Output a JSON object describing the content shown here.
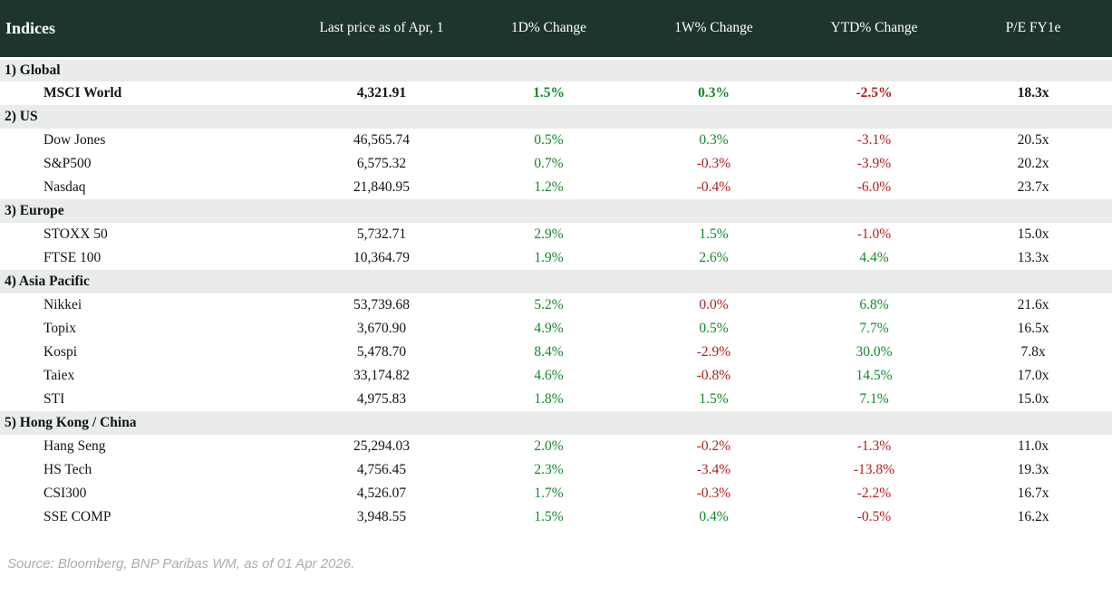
{
  "chart_data": {
    "type": "table",
    "title": "Indices",
    "columns": [
      "Last price as of Apr, 1",
      "1D% Change",
      "1W% Change",
      "YTD% Change",
      "P/E FY1e"
    ],
    "sections": [
      {
        "label": "1) Global",
        "rows": [
          {
            "name": "MSCI World",
            "bold": true,
            "price": "4,321.91",
            "changes": [
              {
                "text": "1.5%",
                "tone": "pos"
              },
              {
                "text": "0.3%",
                "tone": "pos"
              },
              {
                "text": "-2.5%",
                "tone": "neg"
              }
            ],
            "pe": "18.3x"
          }
        ]
      },
      {
        "label": "2) US",
        "rows": [
          {
            "name": "Dow Jones",
            "price": "46,565.74",
            "changes": [
              {
                "text": "0.5%",
                "tone": "pos"
              },
              {
                "text": "0.3%",
                "tone": "pos"
              },
              {
                "text": "-3.1%",
                "tone": "neg"
              }
            ],
            "pe": "20.5x"
          },
          {
            "name": "S&P500",
            "price": "6,575.32",
            "changes": [
              {
                "text": "0.7%",
                "tone": "pos"
              },
              {
                "text": "-0.3%",
                "tone": "neg"
              },
              {
                "text": "-3.9%",
                "tone": "neg"
              }
            ],
            "pe": "20.2x"
          },
          {
            "name": "Nasdaq",
            "price": "21,840.95",
            "changes": [
              {
                "text": "1.2%",
                "tone": "pos"
              },
              {
                "text": "-0.4%",
                "tone": "neg"
              },
              {
                "text": "-6.0%",
                "tone": "neg"
              }
            ],
            "pe": "23.7x"
          }
        ]
      },
      {
        "label": "3) Europe",
        "rows": [
          {
            "name": "STOXX 50",
            "price": "5,732.71",
            "changes": [
              {
                "text": "2.9%",
                "tone": "pos"
              },
              {
                "text": "1.5%",
                "tone": "pos"
              },
              {
                "text": "-1.0%",
                "tone": "neg"
              }
            ],
            "pe": "15.0x"
          },
          {
            "name": "FTSE 100",
            "price": "10,364.79",
            "changes": [
              {
                "text": "1.9%",
                "tone": "pos"
              },
              {
                "text": "2.6%",
                "tone": "pos"
              },
              {
                "text": "4.4%",
                "tone": "pos"
              }
            ],
            "pe": "13.3x"
          }
        ]
      },
      {
        "label": "4) Asia Pacific",
        "rows": [
          {
            "name": "Nikkei",
            "price": "53,739.68",
            "changes": [
              {
                "text": "5.2%",
                "tone": "pos"
              },
              {
                "text": "0.0%",
                "tone": "neg"
              },
              {
                "text": "6.8%",
                "tone": "pos"
              }
            ],
            "pe": "21.6x"
          },
          {
            "name": "Topix",
            "price": "3,670.90",
            "changes": [
              {
                "text": "4.9%",
                "tone": "pos"
              },
              {
                "text": "0.5%",
                "tone": "pos"
              },
              {
                "text": "7.7%",
                "tone": "pos"
              }
            ],
            "pe": "16.5x"
          },
          {
            "name": "Kospi",
            "price": "5,478.70",
            "changes": [
              {
                "text": "8.4%",
                "tone": "pos"
              },
              {
                "text": "-2.9%",
                "tone": "neg"
              },
              {
                "text": "30.0%",
                "tone": "pos"
              }
            ],
            "pe": "7.8x"
          },
          {
            "name": "Taiex",
            "price": "33,174.82",
            "changes": [
              {
                "text": "4.6%",
                "tone": "pos"
              },
              {
                "text": "-0.8%",
                "tone": "neg"
              },
              {
                "text": "14.5%",
                "tone": "pos"
              }
            ],
            "pe": "17.0x"
          },
          {
            "name": "STI",
            "price": "4,975.83",
            "changes": [
              {
                "text": "1.8%",
                "tone": "pos"
              },
              {
                "text": "1.5%",
                "tone": "pos"
              },
              {
                "text": "7.1%",
                "tone": "pos"
              }
            ],
            "pe": "15.0x"
          }
        ]
      },
      {
        "label": "5) Hong Kong / China",
        "rows": [
          {
            "name": "Hang Seng",
            "price": "25,294.03",
            "changes": [
              {
                "text": "2.0%",
                "tone": "pos"
              },
              {
                "text": "-0.2%",
                "tone": "neg"
              },
              {
                "text": "-1.3%",
                "tone": "neg"
              }
            ],
            "pe": "11.0x"
          },
          {
            "name": "HS Tech",
            "price": "4,756.45",
            "changes": [
              {
                "text": "2.3%",
                "tone": "pos"
              },
              {
                "text": "-3.4%",
                "tone": "neg"
              },
              {
                "text": "-13.8%",
                "tone": "neg"
              }
            ],
            "pe": "19.3x"
          },
          {
            "name": "CSI300",
            "price": "4,526.07",
            "changes": [
              {
                "text": "1.7%",
                "tone": "pos"
              },
              {
                "text": "-0.3%",
                "tone": "neg"
              },
              {
                "text": "-2.2%",
                "tone": "neg"
              }
            ],
            "pe": "16.7x"
          },
          {
            "name": "SSE COMP",
            "price": "3,948.55",
            "changes": [
              {
                "text": "1.5%",
                "tone": "pos"
              },
              {
                "text": "0.4%",
                "tone": "pos"
              },
              {
                "text": "-0.5%",
                "tone": "neg"
              }
            ],
            "pe": "16.2x"
          }
        ]
      }
    ]
  },
  "footer": {
    "source": "Source: Bloomberg, BNP Paribas WM, as of 01 Apr 2026."
  },
  "colors": {
    "header_bg": "#1d352e",
    "section_bg": "#e9ece9",
    "positive": "#108a28",
    "negative": "#b71c1c",
    "source_text": "#a8aeb4"
  }
}
